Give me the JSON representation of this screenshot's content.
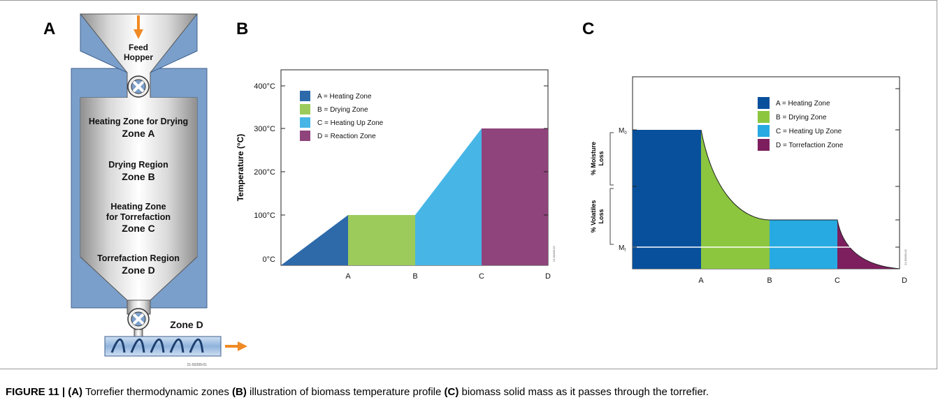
{
  "panels": {
    "a": {
      "letter": "A",
      "feed_label_1": "Feed",
      "feed_label_2": "Hopper",
      "zone_a_title": "Heating Zone for Drying",
      "zone_a_name": "Zone A",
      "zone_b_title": "Drying Region",
      "zone_b_name": "Zone B",
      "zone_c_title_1": "Heating Zone",
      "zone_c_title_2": "for Torrefaction",
      "zone_c_name": "Zone C",
      "zone_d_title": "Torrefaction Region",
      "zone_d_name": "Zone D",
      "screw_zone_label": "Zone D",
      "figure_id": "21-50399-01",
      "colors": {
        "wall": "#7b9fcb",
        "arrow": "#f08a24"
      }
    },
    "b": {
      "letter": "B",
      "ylabel": "Temperature (°C)",
      "y_ticks": [
        "400°C",
        "300°C",
        "200°C",
        "100°C",
        "0°C"
      ],
      "x_ticks": [
        "A",
        "B",
        "C",
        "D"
      ],
      "legend": [
        {
          "label": "A = Heating Zone",
          "color": "#2e6aaa"
        },
        {
          "label": "B = Drying Zone",
          "color": "#9ccb5c"
        },
        {
          "label": "C = Heating Up Zone",
          "color": "#47b6e6"
        },
        {
          "label": "D = Reaction Zone",
          "color": "#8f447c"
        }
      ],
      "figure_id": "21-50399-02"
    },
    "c": {
      "letter": "C",
      "y_labels": {
        "m0": "M",
        "m0_sub": "0",
        "mf": "M",
        "mf_sub": "f"
      },
      "bracket_labels": {
        "moisture_1": "% Moisture",
        "moisture_2": "Loss",
        "volatiles_1": "% Volatiles",
        "volatiles_2": "Loss"
      },
      "x_ticks": [
        "A",
        "B",
        "C",
        "D"
      ],
      "legend": [
        {
          "label": "A = Heating Zone",
          "color": "#08509c"
        },
        {
          "label": "B = Drying Zone",
          "color": "#8cc63f"
        },
        {
          "label": "C = Heating Up Zone",
          "color": "#27aae1"
        },
        {
          "label": "D = Torrefaction Zone",
          "color": "#7d1f5e"
        }
      ],
      "figure_id": "21-50399-03"
    }
  },
  "caption": {
    "figure_label": "FIGURE 11 |",
    "part_a": "(A)",
    "text_a": " Torrefier thermodynamic zones ",
    "part_b": "(B)",
    "text_b": " illustration of biomass temperature profile ",
    "part_c": "(C)",
    "text_c": " biomass solid mass as it passes through the torrefier."
  }
}
